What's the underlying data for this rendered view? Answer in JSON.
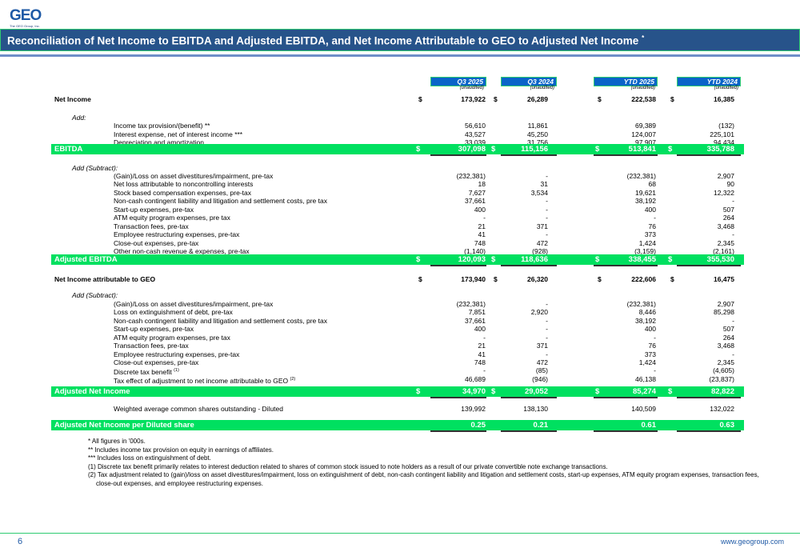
{
  "logo": {
    "text": "GEO",
    "subtitle": "The GEO Group, Inc."
  },
  "title": "Reconciliation of Net Income to EBITDA and Adjusted EBITDA, and Net Income Attributable to GEO to Adjusted Net Income",
  "title_marker": "*",
  "columns": [
    {
      "label": "Q3 2025",
      "sub": "(unaudited)"
    },
    {
      "label": "Q3 2024",
      "sub": "(unaudited)"
    },
    {
      "label": "YTD 2025",
      "sub": "(unaudited)"
    },
    {
      "label": "YTD 2024",
      "sub": "(unaudited)"
    }
  ],
  "currency": "$",
  "rows": [
    {
      "type": "bold",
      "label": "Net Income",
      "dollar": true,
      "values": [
        "173,922",
        "26,289",
        "222,538",
        "16,385"
      ]
    },
    {
      "type": "section",
      "label": "Add:"
    },
    {
      "type": "item",
      "label": "Income tax provision/(benefit) **",
      "values": [
        "56,610",
        "11,861",
        "69,389",
        "(132)"
      ]
    },
    {
      "type": "item",
      "label": "Interest expense, net of interest income ***",
      "values": [
        "43,527",
        "45,250",
        "124,007",
        "225,101"
      ]
    },
    {
      "type": "item",
      "label": "Depreciation and amortization",
      "values": [
        "33,039",
        "31,756",
        "97,907",
        "94,434"
      ]
    },
    {
      "type": "total",
      "label": "EBITDA",
      "dollar": true,
      "values": [
        "307,098",
        "115,156",
        "513,841",
        "335,788"
      ]
    },
    {
      "type": "section",
      "label": "Add (Subtract):"
    },
    {
      "type": "item",
      "label": "(Gain)/Loss on asset divestitures/impairment, pre-tax",
      "values": [
        "(232,381)",
        "-",
        "(232,381)",
        "2,907"
      ]
    },
    {
      "type": "item",
      "label": "Net loss attributable to noncontrolling interests",
      "values": [
        "18",
        "31",
        "68",
        "90"
      ]
    },
    {
      "type": "item",
      "label": "Stock based compensation expenses, pre-tax",
      "values": [
        "7,627",
        "3,534",
        "19,621",
        "12,322"
      ]
    },
    {
      "type": "item",
      "label": "Non-cash contingent liability and litigation and settlement costs, pre tax",
      "values": [
        "37,661",
        "-",
        "38,192",
        "-"
      ]
    },
    {
      "type": "item",
      "label": "Start-up expenses, pre-tax",
      "values": [
        "400",
        "-",
        "400",
        "507"
      ]
    },
    {
      "type": "item",
      "label": "ATM equity program expenses, pre tax",
      "values": [
        "-",
        "-",
        "-",
        "264"
      ]
    },
    {
      "type": "item",
      "label": "Transaction fees, pre-tax",
      "values": [
        "21",
        "371",
        "76",
        "3,468"
      ]
    },
    {
      "type": "item",
      "label": "Employee restructuring expenses, pre-tax",
      "values": [
        "41",
        "-",
        "373",
        "-"
      ]
    },
    {
      "type": "item",
      "label": "Close-out expenses, pre-tax",
      "values": [
        "748",
        "472",
        "1,424",
        "2,345"
      ]
    },
    {
      "type": "item",
      "label": "Other non-cash revenue & expenses, pre-tax",
      "values": [
        "(1,140)",
        "(928)",
        "(3,159)",
        "(2,161)"
      ]
    },
    {
      "type": "total",
      "label": "Adjusted EBITDA",
      "dollar": true,
      "values": [
        "120,093",
        "118,636",
        "338,455",
        "355,530"
      ]
    },
    {
      "type": "bold",
      "label": "Net Income attributable to GEO",
      "dollar": true,
      "values": [
        "173,940",
        "26,320",
        "222,606",
        "16,475"
      ]
    },
    {
      "type": "section",
      "label": "Add (Subtract):"
    },
    {
      "type": "item",
      "label": "(Gain)/Loss on asset divestitures/impairment, pre-tax",
      "values": [
        "(232,381)",
        "-",
        "(232,381)",
        "2,907"
      ]
    },
    {
      "type": "item",
      "label": "Loss on extinguishment of debt, pre-tax",
      "values": [
        "7,851",
        "2,920",
        "8,446",
        "85,298"
      ]
    },
    {
      "type": "item",
      "label": "Non-cash contingent liability and litigation and settlement costs, pre tax",
      "values": [
        "37,661",
        "-",
        "38,192",
        "-"
      ]
    },
    {
      "type": "item",
      "label": "Start-up expenses, pre-tax",
      "values": [
        "400",
        "-",
        "400",
        "507"
      ]
    },
    {
      "type": "item",
      "label": "ATM equity program expenses, pre tax",
      "values": [
        "-",
        "-",
        "-",
        "264"
      ]
    },
    {
      "type": "item",
      "label": "Transaction fees, pre-tax",
      "values": [
        "21",
        "371",
        "76",
        "3,468"
      ]
    },
    {
      "type": "item",
      "label": "Employee restructuring expenses, pre-tax",
      "values": [
        "41",
        "-",
        "373",
        "-"
      ]
    },
    {
      "type": "item",
      "label": "Close-out expenses, pre-tax",
      "values": [
        "748",
        "472",
        "1,424",
        "2,345"
      ]
    },
    {
      "type": "item",
      "label": "Discrete tax benefit",
      "sup": "(1)",
      "values": [
        "-",
        "(85)",
        "-",
        "(4,605)"
      ]
    },
    {
      "type": "item",
      "label": "Tax effect of adjustment to net income attributable to GEO",
      "sup": "(2)",
      "values": [
        "46,689",
        "(946)",
        "46,138",
        "(23,837)"
      ]
    },
    {
      "type": "total",
      "label": "Adjusted Net Income",
      "dollar": true,
      "values": [
        "34,970",
        "29,052",
        "85,274",
        "82,822"
      ]
    },
    {
      "type": "item",
      "label": "Weighted average common shares outstanding - Diluted",
      "values": [
        "139,992",
        "138,130",
        "140,509",
        "132,022"
      ]
    },
    {
      "type": "total",
      "label": "Adjusted Net Income per Diluted share",
      "values": [
        "0.25",
        "0.21",
        "0.61",
        "0.63"
      ]
    }
  ],
  "footnotes": [
    "*   All figures in '000s.",
    "**  Includes income tax provision on equity in earnings of affiliates.",
    "*** Includes loss on extinguishment of debt.",
    "(1) Discrete tax benefit primarily relates to interest deduction related to shares of common stock issued to note holders as a result of our private convertible note exchange transactions.",
    "(2) Tax adjustment related to (gain)/loss on asset divestitures/impairment, loss on extinguishment of debt, non-cash contingent liability and litigation and settlement costs, start-up expenses, ATM equity program expenses, transaction fees, close-out expenses, and employee restructuring expenses."
  ],
  "footer": {
    "page": "6",
    "url": "www.geogroup.com"
  },
  "colors": {
    "title_bg": "#27538a",
    "total_bg": "#00e060",
    "header_bg": "#0a64c8",
    "accent": "#2ecc71"
  }
}
